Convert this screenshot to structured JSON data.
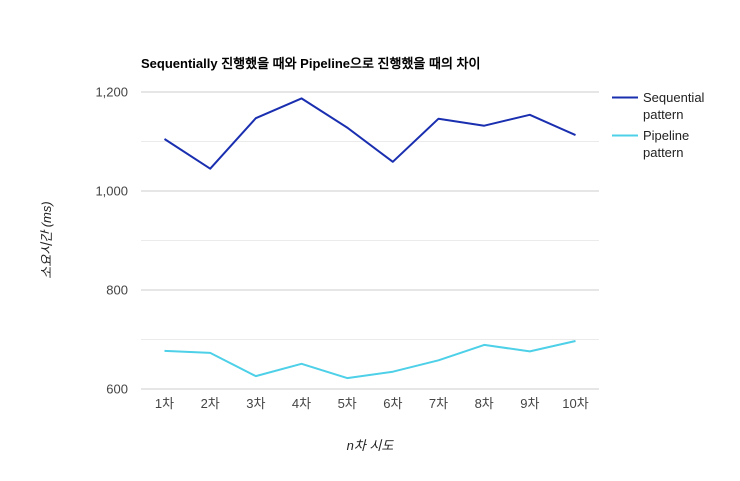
{
  "chart_data": {
    "type": "line",
    "title": "Sequentially 진행했을 때와 Pipeline으로 진행했을 때의 차이",
    "xlabel": "n차 시도",
    "ylabel": "소요시간 (ms)",
    "categories": [
      "1차",
      "2차",
      "3차",
      "4차",
      "5차",
      "6차",
      "7차",
      "8차",
      "9차",
      "10차"
    ],
    "ylim": [
      600,
      1200
    ],
    "yticks": [
      600,
      800,
      1000,
      1200
    ],
    "ytick_labels": [
      "600",
      "800",
      "1,000",
      "1,200"
    ],
    "grid": true,
    "legend_position": "right",
    "series": [
      {
        "name": "Sequential pattern",
        "name_lines": [
          "Sequential",
          "pattern"
        ],
        "color": "#1a2fb0",
        "values": [
          1105,
          1045,
          1147,
          1187,
          1128,
          1059,
          1146,
          1132,
          1154,
          1113
        ]
      },
      {
        "name": "Pipeline pattern",
        "name_lines": [
          "Pipeline",
          "pattern"
        ],
        "color": "#4dd0e8",
        "values": [
          677,
          673,
          626,
          651,
          622,
          635,
          658,
          689,
          676,
          697
        ]
      }
    ]
  }
}
